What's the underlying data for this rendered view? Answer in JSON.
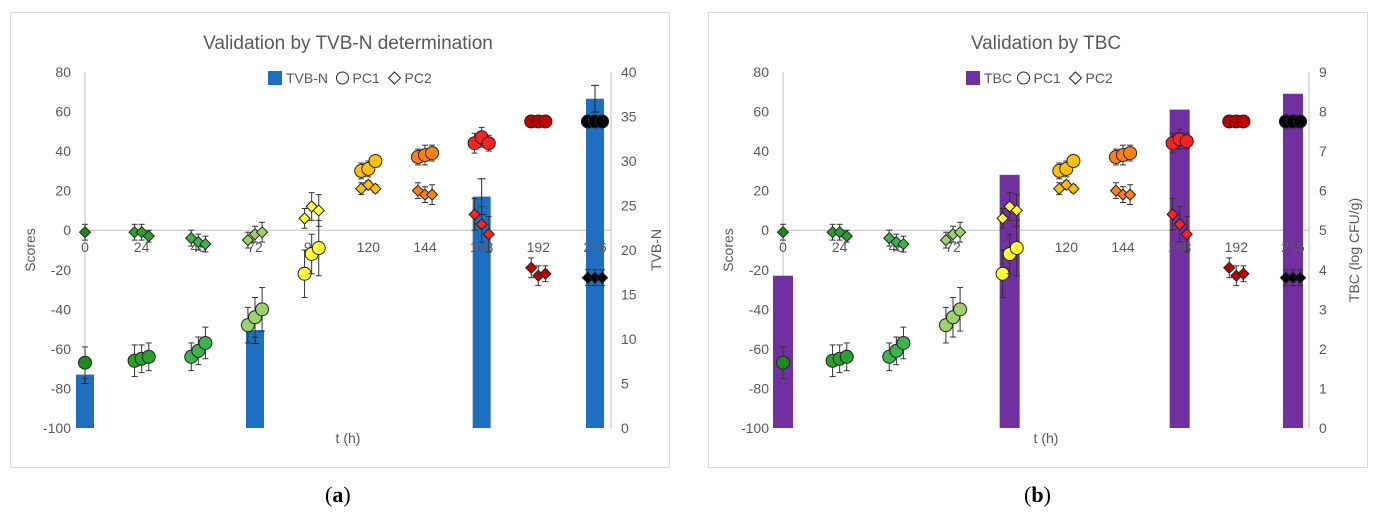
{
  "captions": {
    "a_open": "(",
    "a_letter": "a",
    "a_close": ")",
    "b_open": "(",
    "b_letter": "b",
    "b_close": ")"
  },
  "colors": {
    "tvbn_bar": "#1f6fc0",
    "tbc_bar": "#7030a0",
    "axis": "#bfbfbf",
    "text": "#595959",
    "day0": "#1e8a1e",
    "day1": "#2ca02c",
    "day2": "#3cb44b",
    "day3": "#9bd36a",
    "day4": "#ffff33",
    "day5": "#ffc000",
    "day6": "#ff7f10",
    "day7": "#ff2020",
    "day8": "#c00000",
    "day9": "#000000"
  },
  "chart_data": [
    {
      "type": "bar+scatter",
      "title": "Validation by TVB-N determination",
      "xlabel": "t (h)",
      "ylabel": "Scores",
      "y2label": "TVB-N",
      "x_ticks": [
        "0",
        "24",
        "48",
        "72",
        "96",
        "120",
        "144",
        "168",
        "192",
        "216"
      ],
      "xlim": [
        0,
        216
      ],
      "ylim": [
        -100,
        80
      ],
      "y_ticks": [
        "-100",
        "-80",
        "-60",
        "-40",
        "-20",
        "0",
        "20",
        "40",
        "60",
        "80"
      ],
      "y2lim": [
        0,
        40
      ],
      "y2_ticks": [
        "0",
        "5",
        "10",
        "15",
        "20",
        "25",
        "30",
        "35",
        "40"
      ],
      "legend": {
        "bar": "TVB-N",
        "pc1": "PC1",
        "pc2": "PC2",
        "position": "top-center"
      },
      "bars": [
        {
          "x": 0,
          "value": 6
        },
        {
          "x": 72,
          "value": 11
        },
        {
          "x": 168,
          "value": 26
        },
        {
          "x": 216,
          "value": 37
        }
      ],
      "bar_errors": [
        1,
        1.5,
        2,
        1.5
      ],
      "pc1": [
        {
          "x": 0,
          "y": -67,
          "e": 8,
          "c": "day0"
        },
        {
          "x": 21,
          "y": -66,
          "e": 8,
          "c": "day1"
        },
        {
          "x": 24,
          "y": -65,
          "e": 7,
          "c": "day1"
        },
        {
          "x": 27,
          "y": -64,
          "e": 7,
          "c": "day1"
        },
        {
          "x": 45,
          "y": -64,
          "e": 7,
          "c": "day2"
        },
        {
          "x": 48,
          "y": -61,
          "e": 7,
          "c": "day2"
        },
        {
          "x": 51,
          "y": -57,
          "e": 8,
          "c": "day2"
        },
        {
          "x": 69,
          "y": -48,
          "e": 9,
          "c": "day3"
        },
        {
          "x": 72,
          "y": -44,
          "e": 10,
          "c": "day3"
        },
        {
          "x": 75,
          "y": -40,
          "e": 11,
          "c": "day3"
        },
        {
          "x": 93,
          "y": -22,
          "e": 12,
          "c": "day4"
        },
        {
          "x": 96,
          "y": -12,
          "e": 10,
          "c": "day4"
        },
        {
          "x": 99,
          "y": -9,
          "e": 14,
          "c": "day4"
        },
        {
          "x": 117,
          "y": 30,
          "e": 4,
          "c": "day5"
        },
        {
          "x": 120,
          "y": 31,
          "e": 4,
          "c": "day5"
        },
        {
          "x": 123,
          "y": 35,
          "e": 3,
          "c": "day5"
        },
        {
          "x": 141,
          "y": 37,
          "e": 4,
          "c": "day6"
        },
        {
          "x": 144,
          "y": 38,
          "e": 5,
          "c": "day6"
        },
        {
          "x": 147,
          "y": 39,
          "e": 4,
          "c": "day6"
        },
        {
          "x": 165,
          "y": 44,
          "e": 5,
          "c": "day7"
        },
        {
          "x": 168,
          "y": 47,
          "e": 5,
          "c": "day7"
        },
        {
          "x": 171,
          "y": 44,
          "e": 4,
          "c": "day7"
        },
        {
          "x": 189,
          "y": 55,
          "e": 3,
          "c": "day8"
        },
        {
          "x": 192,
          "y": 55,
          "e": 3,
          "c": "day8"
        },
        {
          "x": 195,
          "y": 55,
          "e": 3,
          "c": "day8"
        },
        {
          "x": 213,
          "y": 55,
          "e": 3,
          "c": "day9"
        },
        {
          "x": 216,
          "y": 55,
          "e": 3,
          "c": "day9"
        },
        {
          "x": 219,
          "y": 55,
          "e": 3,
          "c": "day9"
        }
      ],
      "pc2": [
        {
          "x": 0,
          "y": -1,
          "e": 4,
          "c": "day0"
        },
        {
          "x": 21,
          "y": -1,
          "e": 4,
          "c": "day1"
        },
        {
          "x": 24,
          "y": -1,
          "e": 4,
          "c": "day1"
        },
        {
          "x": 27,
          "y": -3,
          "e": 3,
          "c": "day1"
        },
        {
          "x": 45,
          "y": -4,
          "e": 4,
          "c": "day2"
        },
        {
          "x": 48,
          "y": -6,
          "e": 4,
          "c": "day2"
        },
        {
          "x": 51,
          "y": -7,
          "e": 4,
          "c": "day2"
        },
        {
          "x": 69,
          "y": -5,
          "e": 4,
          "c": "day3"
        },
        {
          "x": 72,
          "y": -2,
          "e": 4,
          "c": "day3"
        },
        {
          "x": 75,
          "y": -1,
          "e": 5,
          "c": "day3"
        },
        {
          "x": 93,
          "y": 6,
          "e": 5,
          "c": "day4"
        },
        {
          "x": 96,
          "y": 12,
          "e": 7,
          "c": "day4"
        },
        {
          "x": 99,
          "y": 10,
          "e": 8,
          "c": "day4"
        },
        {
          "x": 117,
          "y": 21,
          "e": 3,
          "c": "day5"
        },
        {
          "x": 120,
          "y": 23,
          "e": 2,
          "c": "day5"
        },
        {
          "x": 123,
          "y": 21,
          "e": 2,
          "c": "day5"
        },
        {
          "x": 141,
          "y": 20,
          "e": 4,
          "c": "day6"
        },
        {
          "x": 144,
          "y": 18,
          "e": 4,
          "c": "day6"
        },
        {
          "x": 147,
          "y": 18,
          "e": 5,
          "c": "day6"
        },
        {
          "x": 165,
          "y": 8,
          "e": 8,
          "c": "day7"
        },
        {
          "x": 168,
          "y": 3,
          "e": 9,
          "c": "day7"
        },
        {
          "x": 171,
          "y": -2,
          "e": 9,
          "c": "day7"
        },
        {
          "x": 189,
          "y": -19,
          "e": 5,
          "c": "day8"
        },
        {
          "x": 192,
          "y": -23,
          "e": 5,
          "c": "day8"
        },
        {
          "x": 195,
          "y": -22,
          "e": 4,
          "c": "day8"
        },
        {
          "x": 213,
          "y": -24,
          "e": 4,
          "c": "day9"
        },
        {
          "x": 216,
          "y": -24,
          "e": 4,
          "c": "day9"
        },
        {
          "x": 219,
          "y": -24,
          "e": 4,
          "c": "day9"
        }
      ]
    },
    {
      "type": "bar+scatter",
      "title": "Validation by TBC",
      "xlabel": "t (h)",
      "ylabel": "Scores",
      "y2label": "TBC (log CFU/g)",
      "x_ticks": [
        "0",
        "24",
        "48",
        "72",
        "96",
        "120",
        "144",
        "168",
        "192",
        "216"
      ],
      "xlim": [
        0,
        216
      ],
      "ylim": [
        -100,
        80
      ],
      "y_ticks": [
        "-100",
        "-80",
        "-60",
        "-40",
        "-20",
        "0",
        "20",
        "40",
        "60",
        "80"
      ],
      "y2lim": [
        0,
        9
      ],
      "y2_ticks": [
        "0",
        "1",
        "2",
        "3",
        "4",
        "5",
        "6",
        "7",
        "8",
        "9"
      ],
      "legend": {
        "bar": "TBC",
        "pc1": "PC1",
        "pc2": "PC2",
        "position": "top-center"
      },
      "bars": [
        {
          "x": 0,
          "value": 3.85
        },
        {
          "x": 96,
          "value": 6.4
        },
        {
          "x": 168,
          "value": 8.05
        },
        {
          "x": 216,
          "value": 8.45
        }
      ],
      "bar_errors": [
        0,
        0,
        0,
        0
      ],
      "pc1": [
        {
          "x": 0,
          "y": -67,
          "e": 8,
          "c": "day0"
        },
        {
          "x": 21,
          "y": -66,
          "e": 8,
          "c": "day1"
        },
        {
          "x": 24,
          "y": -65,
          "e": 7,
          "c": "day1"
        },
        {
          "x": 27,
          "y": -64,
          "e": 7,
          "c": "day1"
        },
        {
          "x": 45,
          "y": -64,
          "e": 7,
          "c": "day2"
        },
        {
          "x": 48,
          "y": -61,
          "e": 7,
          "c": "day2"
        },
        {
          "x": 51,
          "y": -57,
          "e": 8,
          "c": "day2"
        },
        {
          "x": 69,
          "y": -48,
          "e": 9,
          "c": "day3"
        },
        {
          "x": 72,
          "y": -44,
          "e": 10,
          "c": "day3"
        },
        {
          "x": 75,
          "y": -40,
          "e": 11,
          "c": "day3"
        },
        {
          "x": 93,
          "y": -22,
          "e": 12,
          "c": "day4"
        },
        {
          "x": 96,
          "y": -12,
          "e": 10,
          "c": "day4"
        },
        {
          "x": 99,
          "y": -9,
          "e": 14,
          "c": "day4"
        },
        {
          "x": 117,
          "y": 30,
          "e": 4,
          "c": "day5"
        },
        {
          "x": 120,
          "y": 31,
          "e": 4,
          "c": "day5"
        },
        {
          "x": 123,
          "y": 35,
          "e": 3,
          "c": "day5"
        },
        {
          "x": 141,
          "y": 37,
          "e": 4,
          "c": "day6"
        },
        {
          "x": 144,
          "y": 38,
          "e": 5,
          "c": "day6"
        },
        {
          "x": 147,
          "y": 39,
          "e": 4,
          "c": "day6"
        },
        {
          "x": 165,
          "y": 44,
          "e": 5,
          "c": "day7"
        },
        {
          "x": 168,
          "y": 46,
          "e": 5,
          "c": "day7"
        },
        {
          "x": 171,
          "y": 45,
          "e": 4,
          "c": "day7"
        },
        {
          "x": 189,
          "y": 55,
          "e": 3,
          "c": "day8"
        },
        {
          "x": 192,
          "y": 55,
          "e": 3,
          "c": "day8"
        },
        {
          "x": 195,
          "y": 55,
          "e": 3,
          "c": "day8"
        },
        {
          "x": 213,
          "y": 55,
          "e": 3,
          "c": "day9"
        },
        {
          "x": 216,
          "y": 55,
          "e": 3,
          "c": "day9"
        },
        {
          "x": 219,
          "y": 55,
          "e": 3,
          "c": "day9"
        }
      ],
      "pc2": [
        {
          "x": 0,
          "y": -1,
          "e": 4,
          "c": "day0"
        },
        {
          "x": 21,
          "y": -1,
          "e": 4,
          "c": "day1"
        },
        {
          "x": 24,
          "y": -1,
          "e": 4,
          "c": "day1"
        },
        {
          "x": 27,
          "y": -3,
          "e": 3,
          "c": "day1"
        },
        {
          "x": 45,
          "y": -4,
          "e": 4,
          "c": "day2"
        },
        {
          "x": 48,
          "y": -6,
          "e": 4,
          "c": "day2"
        },
        {
          "x": 51,
          "y": -7,
          "e": 4,
          "c": "day2"
        },
        {
          "x": 69,
          "y": -5,
          "e": 4,
          "c": "day3"
        },
        {
          "x": 72,
          "y": -2,
          "e": 4,
          "c": "day3"
        },
        {
          "x": 75,
          "y": -1,
          "e": 5,
          "c": "day3"
        },
        {
          "x": 93,
          "y": 6,
          "e": 5,
          "c": "day4"
        },
        {
          "x": 96,
          "y": 12,
          "e": 7,
          "c": "day4"
        },
        {
          "x": 99,
          "y": 10,
          "e": 8,
          "c": "day4"
        },
        {
          "x": 117,
          "y": 21,
          "e": 3,
          "c": "day5"
        },
        {
          "x": 120,
          "y": 23,
          "e": 2,
          "c": "day5"
        },
        {
          "x": 123,
          "y": 21,
          "e": 2,
          "c": "day5"
        },
        {
          "x": 141,
          "y": 20,
          "e": 4,
          "c": "day6"
        },
        {
          "x": 144,
          "y": 18,
          "e": 4,
          "c": "day6"
        },
        {
          "x": 147,
          "y": 18,
          "e": 5,
          "c": "day6"
        },
        {
          "x": 165,
          "y": 8,
          "e": 8,
          "c": "day7"
        },
        {
          "x": 168,
          "y": 3,
          "e": 9,
          "c": "day7"
        },
        {
          "x": 171,
          "y": -2,
          "e": 9,
          "c": "day7"
        },
        {
          "x": 189,
          "y": -19,
          "e": 5,
          "c": "day8"
        },
        {
          "x": 192,
          "y": -23,
          "e": 5,
          "c": "day8"
        },
        {
          "x": 195,
          "y": -22,
          "e": 4,
          "c": "day8"
        },
        {
          "x": 213,
          "y": -24,
          "e": 4,
          "c": "day9"
        },
        {
          "x": 216,
          "y": -24,
          "e": 4,
          "c": "day9"
        },
        {
          "x": 219,
          "y": -24,
          "e": 4,
          "c": "day9"
        }
      ]
    }
  ]
}
